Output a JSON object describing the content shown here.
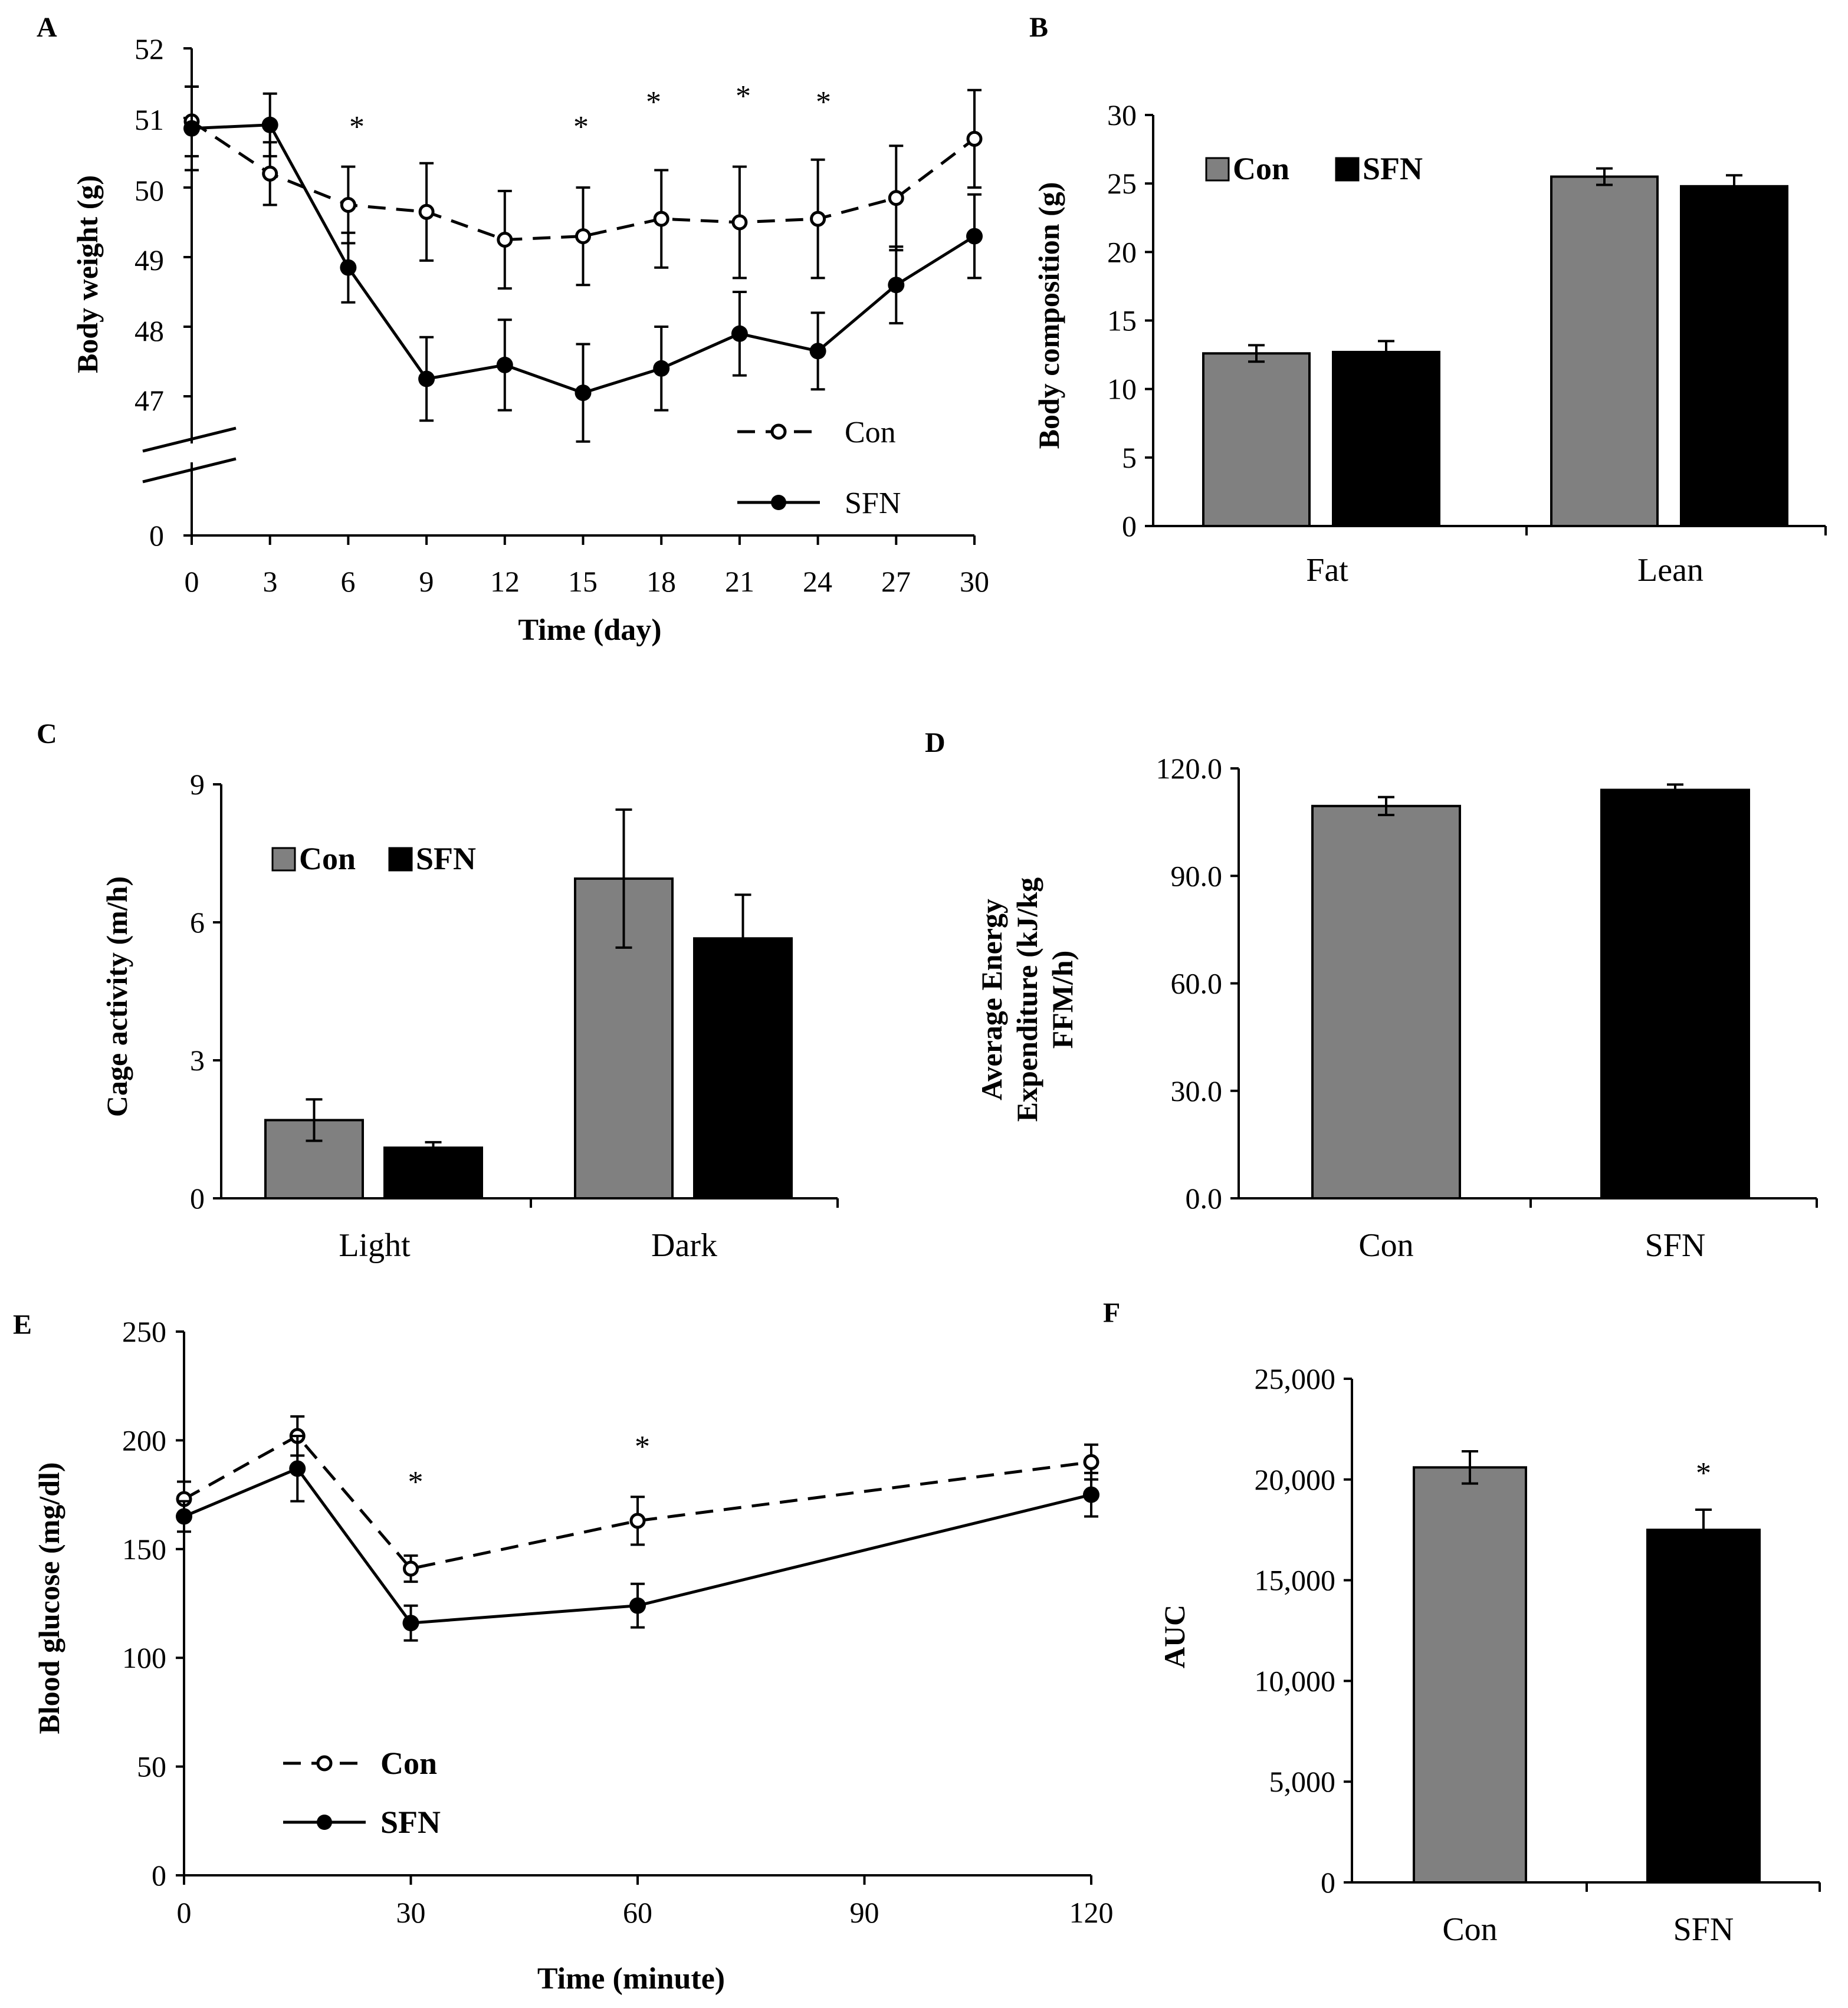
{
  "colors": {
    "con_bar": "#808080",
    "sfn_bar": "#000000",
    "axis": "#000000",
    "background": "#ffffff"
  },
  "chart_data": [
    {
      "id": "A",
      "panel_label": "A",
      "type": "line",
      "xlabel": "Time (day)",
      "ylabel": "Body weight (g)",
      "x": [
        0,
        3,
        6,
        9,
        12,
        15,
        18,
        21,
        24,
        27,
        30
      ],
      "x_ticks": [
        "0",
        "3",
        "6",
        "9",
        "12",
        "15",
        "18",
        "21",
        "24",
        "27",
        "30"
      ],
      "y_ticks": [
        "0",
        "47",
        "48",
        "49",
        "50",
        "51",
        "52"
      ],
      "ylim": [
        46.2,
        52
      ],
      "axis_break": true,
      "series": [
        {
          "name": "Con",
          "style": "dashed-open",
          "values": [
            50.95,
            50.2,
            49.75,
            49.65,
            49.25,
            49.3,
            49.55,
            49.5,
            49.55,
            49.85,
            50.7
          ],
          "errors": [
            0.5,
            0.45,
            0.55,
            0.7,
            0.7,
            0.7,
            0.7,
            0.8,
            0.85,
            0.75,
            0.7
          ]
        },
        {
          "name": "SFN",
          "style": "solid-filled",
          "values": [
            50.85,
            50.9,
            48.85,
            47.25,
            47.45,
            47.05,
            47.4,
            47.9,
            47.65,
            48.6,
            49.3
          ],
          "errors": [
            0.6,
            0.45,
            0.5,
            0.6,
            0.65,
            0.7,
            0.6,
            0.6,
            0.55,
            0.55,
            0.6
          ]
        }
      ],
      "stars_at": [
        6,
        15,
        18,
        21,
        24
      ],
      "star_label": "*",
      "legend": [
        "Con",
        "SFN"
      ]
    },
    {
      "id": "B",
      "panel_label": "B",
      "type": "bar",
      "xlabel": "",
      "ylabel": "Body composition (g)",
      "categories": [
        "Fat",
        "Lean"
      ],
      "y_ticks": [
        "0",
        "5",
        "10",
        "15",
        "20",
        "25",
        "30"
      ],
      "ylim": [
        0,
        30
      ],
      "series": [
        {
          "name": "Con",
          "values": [
            12.6,
            25.5
          ],
          "errors": [
            0.6,
            0.6
          ]
        },
        {
          "name": "SFN",
          "values": [
            12.7,
            24.8
          ],
          "errors": [
            0.8,
            0.8
          ]
        }
      ],
      "legend": [
        "Con",
        "SFN"
      ]
    },
    {
      "id": "C",
      "panel_label": "C",
      "type": "bar",
      "xlabel": "",
      "ylabel": "Cage activity (m/h)",
      "categories": [
        "Light",
        "Dark"
      ],
      "y_ticks": [
        "0",
        "3",
        "6",
        "9"
      ],
      "ylim": [
        0,
        9
      ],
      "series": [
        {
          "name": "Con",
          "values": [
            1.7,
            6.95
          ],
          "errors": [
            0.45,
            1.5
          ]
        },
        {
          "name": "SFN",
          "values": [
            1.1,
            5.65
          ],
          "errors": [
            0.12,
            0.95
          ]
        }
      ],
      "legend": [
        "Con",
        "SFN"
      ]
    },
    {
      "id": "D",
      "panel_label": "D",
      "type": "bar",
      "xlabel": "",
      "ylabel_lines": [
        "Average Energy",
        "Expenditure (kJ/kg",
        "FFM/h)"
      ],
      "categories": [
        "Con",
        "SFN"
      ],
      "y_ticks": [
        "0.0",
        "30.0",
        "60.0",
        "90.0",
        "120.0"
      ],
      "ylim": [
        0,
        120
      ],
      "series": [
        {
          "name": "values",
          "values": [
            109.5,
            114
          ],
          "errors": [
            2.5,
            1.5
          ],
          "colors": [
            "#808080",
            "#000000"
          ]
        }
      ]
    },
    {
      "id": "E",
      "panel_label": "E",
      "type": "line",
      "xlabel": "Time (minute)",
      "ylabel": "Blood glucose (mg/dl)",
      "x": [
        0,
        15,
        30,
        60,
        120
      ],
      "x_ticks": [
        "0",
        "30",
        "60",
        "90",
        "120"
      ],
      "x_tick_values": [
        0,
        30,
        60,
        90,
        120
      ],
      "y_ticks": [
        "0",
        "50",
        "100",
        "150",
        "200",
        "250"
      ],
      "ylim": [
        0,
        250
      ],
      "series": [
        {
          "name": "Con",
          "style": "dashed-open",
          "values": [
            173,
            202,
            141,
            163,
            190
          ],
          "errors": [
            8,
            9,
            6,
            11,
            8
          ]
        },
        {
          "name": "SFN",
          "style": "solid-filled",
          "values": [
            165,
            187,
            116,
            124,
            175
          ],
          "errors": [
            7,
            15,
            8,
            10,
            10
          ]
        }
      ],
      "stars_at": [
        30,
        60
      ],
      "star_label": "*",
      "legend": [
        "Con",
        "SFN"
      ]
    },
    {
      "id": "F",
      "panel_label": "F",
      "type": "bar",
      "xlabel": "",
      "ylabel": "AUC",
      "categories": [
        "Con",
        "SFN"
      ],
      "y_ticks": [
        "0",
        "5,000",
        "10,000",
        "15,000",
        "20,000",
        "25,000"
      ],
      "ylim": [
        0,
        25000
      ],
      "series": [
        {
          "name": "values",
          "values": [
            20600,
            17500
          ],
          "errors": [
            800,
            1000
          ],
          "colors": [
            "#808080",
            "#000000"
          ]
        }
      ],
      "stars_on": [
        1
      ],
      "star_label": "*"
    }
  ]
}
